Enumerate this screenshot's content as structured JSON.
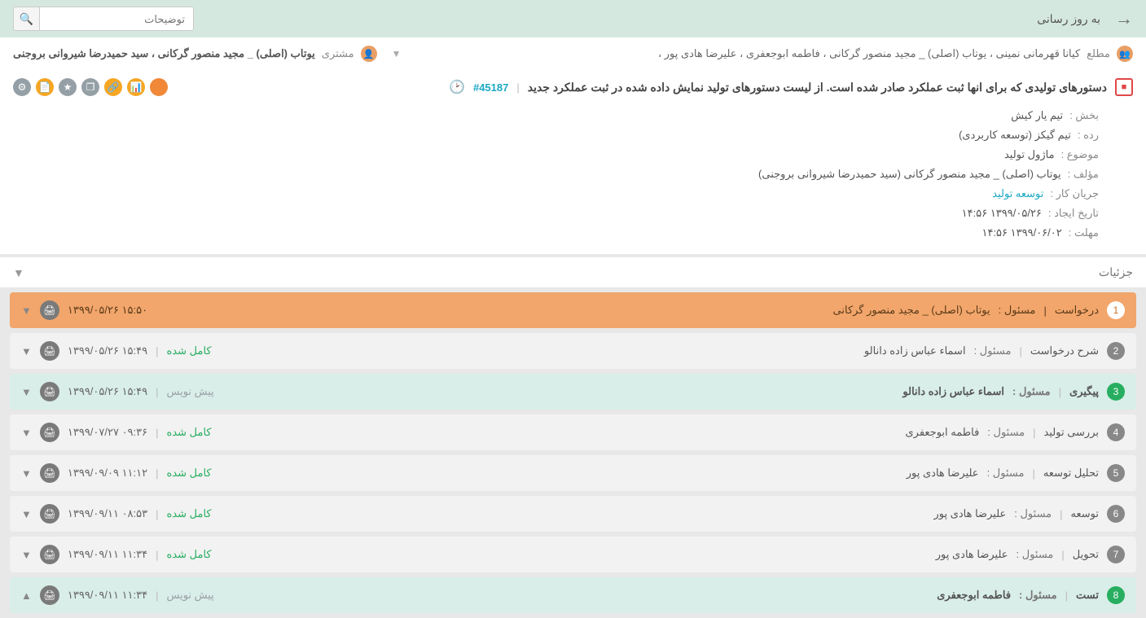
{
  "topbar": {
    "refresh": "به روز رسانی",
    "search_placeholder": "توضیحات"
  },
  "watchers": {
    "label": "مطلع",
    "names": "کیانا قهرمانی نمینی ، یوتاب (اصلی) _ مجید منصور گرکانی ، فاطمه ابوجعفری ، علیرضا هادی پور ،"
  },
  "customer": {
    "label": "مشتری",
    "name": "یوتاب (اصلی) _ مجید منصور گرکانی ، سید حمیدرضا شیروانی بروجنی"
  },
  "ticket": {
    "title": "دستورهای تولیدی که برای انها ثبت عملکرد صادر شده است. از لیست دستورهای تولید نمایش داده شده در ثبت عملکرد جدید",
    "id": "#45187"
  },
  "meta": {
    "section_l": "بخش :",
    "section_v": "تیم یار کیش",
    "cat_l": "رده :",
    "cat_v": "تیم گیکز (توسعه کاربردی)",
    "subject_l": "موضوع :",
    "subject_v": "ماژول تولید",
    "author_l": "مؤلف :",
    "author_v": "یوتاب (اصلی) _ مجید منصور گرکانی (سید حمیدرضا شیروانی بروجنی)",
    "workflow_l": "جریان کار :",
    "workflow_v": "توسعه تولید",
    "created_l": "تاریخ ایجاد :",
    "created_v": "۱۳۹۹/۰۵/۲۶ ۱۴:۵۶",
    "due_l": "مهلت :",
    "due_v": "۱۳۹۹/۰۶/۰۲ ۱۴:۵۶"
  },
  "details_label": "جزئیات",
  "rows": {
    "owner_l": "مسئول :",
    "r1": {
      "num": "1",
      "label": "درخواست",
      "owner": "یوتاب (اصلی) _ مجید منصور گرکانی",
      "date": "۱۳۹۹/۰۵/۲۶ ۱۵:۵۰"
    },
    "r2": {
      "num": "2",
      "label": "شرح درخواست",
      "owner": "اسماء عباس زاده دانالو",
      "status": "کامل شده",
      "date": "۱۳۹۹/۰۵/۲۶ ۱۵:۴۹"
    },
    "r3": {
      "num": "3",
      "label": "پیگیری",
      "owner": "اسماء عباس زاده دانالو",
      "status": "پیش نویس",
      "date": "۱۳۹۹/۰۵/۲۶ ۱۵:۴۹"
    },
    "r4": {
      "num": "4",
      "label": "بررسی تولید",
      "owner": "فاطمه ابوجعفری",
      "status": "کامل شده",
      "date": "۱۳۹۹/۰۷/۲۷ ۰۹:۳۶"
    },
    "r5": {
      "num": "5",
      "label": "تحلیل توسعه",
      "owner": "علیرضا هادی پور",
      "status": "کامل شده",
      "date": "۱۳۹۹/۰۹/۰۹ ۱۱:۱۲"
    },
    "r6": {
      "num": "6",
      "label": "توسعه",
      "owner": "علیرضا هادی پور",
      "status": "کامل شده",
      "date": "۱۳۹۹/۰۹/۱۱ ۰۸:۵۳"
    },
    "r7": {
      "num": "7",
      "label": "تحویل",
      "owner": "علیرضا هادی پور",
      "status": "کامل شده",
      "date": "۱۳۹۹/۰۹/۱۱ ۱۱:۳۴"
    },
    "r8": {
      "num": "8",
      "label": "تست",
      "owner": "فاطمه ابوجعفری",
      "status": "پیش نویس",
      "date": "۱۳۹۹/۰۹/۱۱ ۱۱:۳۴"
    }
  }
}
